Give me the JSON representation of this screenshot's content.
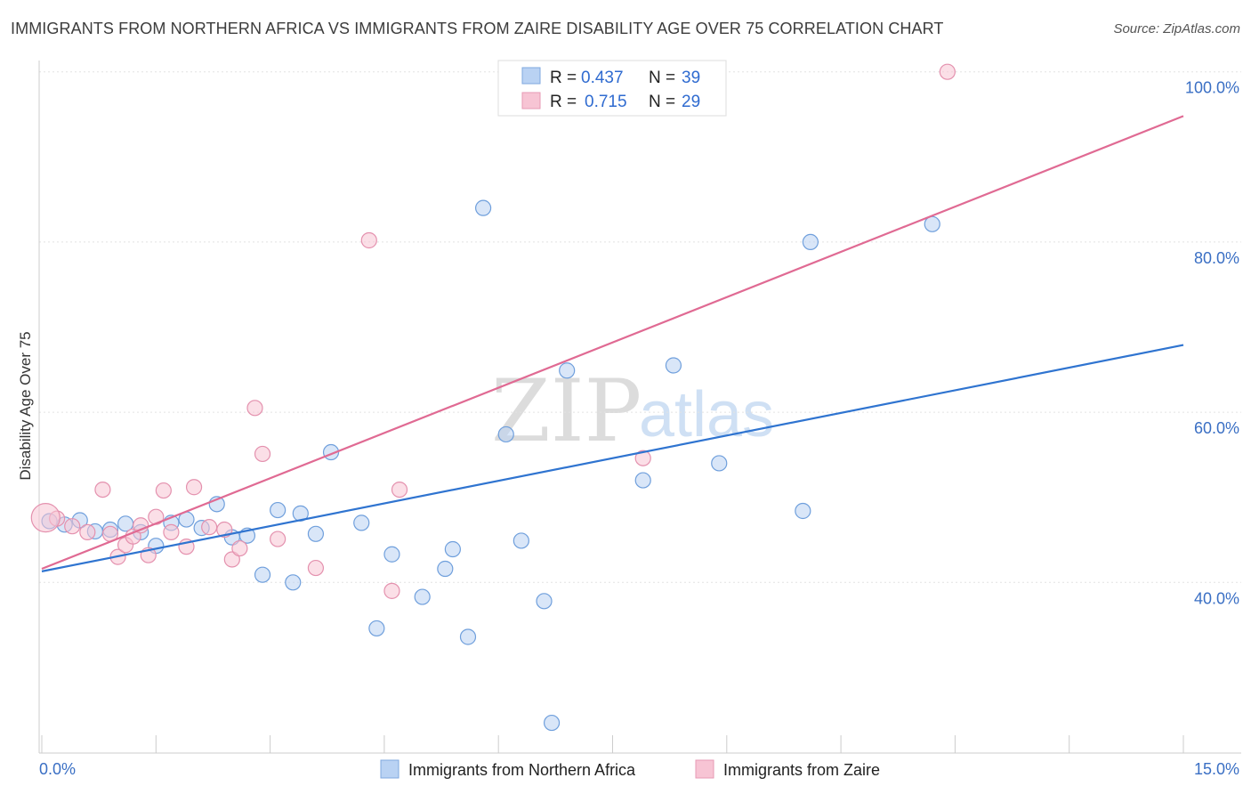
{
  "title": "IMMIGRANTS FROM NORTHERN AFRICA VS IMMIGRANTS FROM ZAIRE DISABILITY AGE OVER 75 CORRELATION CHART",
  "source": "Source: ZipAtlas.com",
  "watermark": {
    "zip": "ZIP",
    "atlas": "atlas"
  },
  "colors": {
    "blue": "#2f74d0",
    "pink": "#e06a93",
    "blue_fill": "#b9d2f3",
    "pink_fill": "#f7c4d4",
    "tick": "#3a6fc4"
  },
  "legend": {
    "rows": [
      {
        "r_label": "R = ",
        "r_value": "0.437",
        "n_label": "N = ",
        "n_value": "39"
      },
      {
        "r_label": "R = ",
        "r_value": "0.715",
        "n_label": "N = ",
        "n_value": "29"
      }
    ]
  },
  "chart_data": {
    "type": "scatter",
    "ylabel": "Disability Age Over 75",
    "x_ticks": [
      "0.0%",
      "15.0%"
    ],
    "y_ticks": [
      "40.0%",
      "60.0%",
      "80.0%",
      "100.0%"
    ],
    "xlim": [
      0,
      15
    ],
    "ylim": [
      20,
      101
    ],
    "grid": true,
    "legend_position": "top-center",
    "series": [
      {
        "name": "Immigrants from Northern Africa",
        "color": "#2f74d0",
        "r": 0.437,
        "n": 39,
        "trend": {
          "x0": 0,
          "y0": 41.3,
          "x1": 15,
          "y1": 67.9
        },
        "points": [
          [
            0.1,
            47.2
          ],
          [
            0.3,
            46.8
          ],
          [
            0.5,
            47.3
          ],
          [
            0.7,
            46.0
          ],
          [
            0.9,
            46.2
          ],
          [
            1.1,
            46.9
          ],
          [
            1.3,
            45.9
          ],
          [
            1.5,
            44.3
          ],
          [
            1.7,
            47.0
          ],
          [
            1.9,
            47.4
          ],
          [
            2.1,
            46.4
          ],
          [
            2.3,
            49.2
          ],
          [
            2.5,
            45.3
          ],
          [
            2.7,
            45.5
          ],
          [
            2.9,
            40.9
          ],
          [
            3.1,
            48.5
          ],
          [
            3.3,
            40.0
          ],
          [
            3.4,
            48.1
          ],
          [
            3.6,
            45.7
          ],
          [
            3.8,
            55.3
          ],
          [
            4.2,
            47.0
          ],
          [
            4.4,
            34.6
          ],
          [
            4.6,
            43.3
          ],
          [
            5.0,
            38.3
          ],
          [
            5.3,
            41.6
          ],
          [
            5.4,
            43.9
          ],
          [
            5.6,
            33.6
          ],
          [
            5.8,
            84.0
          ],
          [
            6.1,
            57.4
          ],
          [
            6.3,
            44.9
          ],
          [
            6.6,
            37.8
          ],
          [
            6.7,
            23.5
          ],
          [
            6.9,
            64.9
          ],
          [
            7.9,
            52.0
          ],
          [
            8.3,
            65.5
          ],
          [
            8.9,
            54.0
          ],
          [
            10.0,
            48.4
          ],
          [
            10.1,
            80.0
          ],
          [
            11.7,
            82.1
          ]
        ]
      },
      {
        "name": "Immigrants from Zaire",
        "color": "#e06a93",
        "r": 0.715,
        "n": 29,
        "trend": {
          "x0": 0,
          "y0": 41.6,
          "x1": 15,
          "y1": 94.8
        },
        "points": [
          [
            0.2,
            47.5
          ],
          [
            0.4,
            46.6
          ],
          [
            0.6,
            45.9
          ],
          [
            0.8,
            50.9
          ],
          [
            0.9,
            45.7
          ],
          [
            1.0,
            43.0
          ],
          [
            1.1,
            44.4
          ],
          [
            1.2,
            45.4
          ],
          [
            1.3,
            46.7
          ],
          [
            1.4,
            43.2
          ],
          [
            1.5,
            47.7
          ],
          [
            1.6,
            50.8
          ],
          [
            1.7,
            45.9
          ],
          [
            1.9,
            44.2
          ],
          [
            2.0,
            51.2
          ],
          [
            2.2,
            46.5
          ],
          [
            2.4,
            46.2
          ],
          [
            2.5,
            42.7
          ],
          [
            2.6,
            44.0
          ],
          [
            2.8,
            60.5
          ],
          [
            2.9,
            55.1
          ],
          [
            3.1,
            45.1
          ],
          [
            3.6,
            41.7
          ],
          [
            4.3,
            80.2
          ],
          [
            4.6,
            39.0
          ],
          [
            4.7,
            50.9
          ],
          [
            7.9,
            54.6
          ],
          [
            11.9,
            100.0
          ],
          [
            0.05,
            47.6
          ]
        ]
      }
    ]
  }
}
